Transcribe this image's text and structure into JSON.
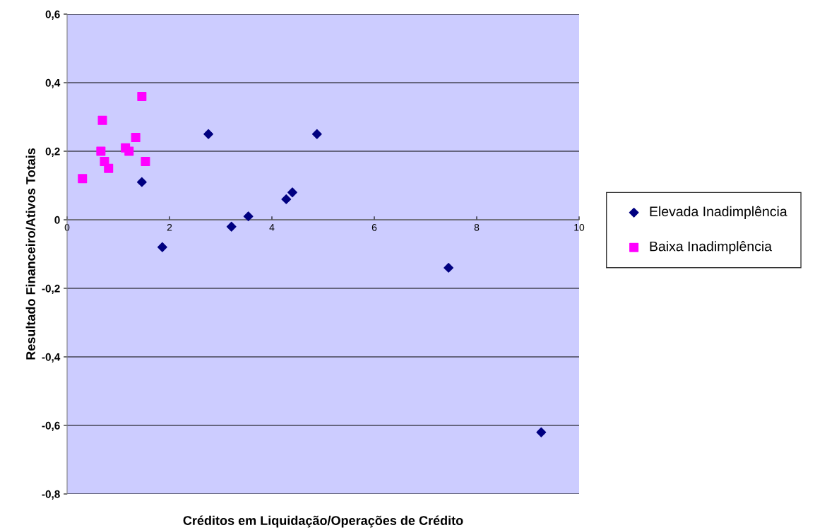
{
  "chart_data": {
    "type": "scatter",
    "xlabel": "Créditos em Liquidação/Operações de Crédito",
    "ylabel": "Resultado Financeiro/Ativos Totais",
    "xlim": [
      0,
      10
    ],
    "ylim": [
      -0.8,
      0.6
    ],
    "xticks": [
      0,
      2,
      4,
      6,
      8,
      10
    ],
    "yticks": [
      {
        "value": -0.8,
        "label": "-0,8"
      },
      {
        "value": -0.6,
        "label": "-0,6"
      },
      {
        "value": -0.4,
        "label": "-0,4"
      },
      {
        "value": -0.2,
        "label": "-0,2"
      },
      {
        "value": 0,
        "label": "0"
      },
      {
        "value": 0.2,
        "label": "0,2"
      },
      {
        "value": 0.4,
        "label": "0,4"
      },
      {
        "value": 0.6,
        "label": "0,6"
      }
    ],
    "grid": "y",
    "legend": "right",
    "series": [
      {
        "name": "Elevada Inadimplência",
        "color": "#000080",
        "marker": "diamond",
        "x": [
          1.46,
          1.86,
          2.76,
          3.21,
          3.54,
          4.28,
          4.4,
          4.88,
          7.45,
          9.26
        ],
        "values": [
          0.11,
          -0.08,
          0.25,
          -0.02,
          0.01,
          0.06,
          0.08,
          0.25,
          -0.14,
          -0.62
        ]
      },
      {
        "name": "Baixa Inadimplência",
        "color": "#ff00ff",
        "marker": "square",
        "x": [
          0.3,
          0.66,
          0.69,
          0.73,
          0.81,
          1.14,
          1.21,
          1.34,
          1.46,
          1.53
        ],
        "values": [
          0.12,
          0.2,
          0.29,
          0.17,
          0.15,
          0.21,
          0.2,
          0.24,
          0.36,
          0.17
        ]
      }
    ]
  }
}
